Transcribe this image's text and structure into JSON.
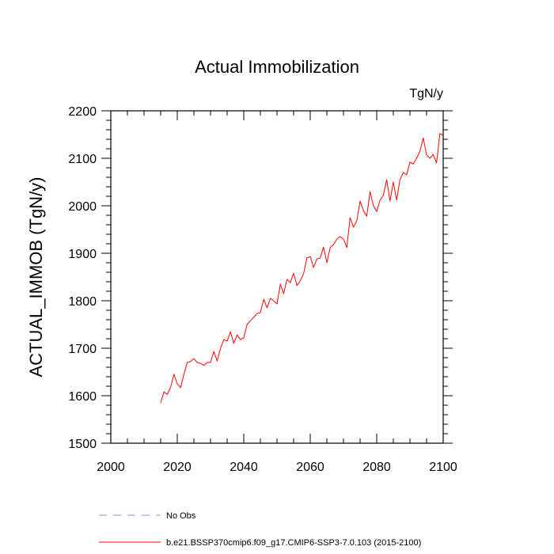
{
  "chart_data": {
    "type": "line",
    "title": "Actual Immobilization",
    "units": "TgN/y",
    "xlabel": "",
    "ylabel": "ACTUAL_IMMOB  (TgN/y)",
    "xlim": [
      2000,
      2100
    ],
    "ylim": [
      1500,
      2200
    ],
    "x_ticks": [
      2000,
      2020,
      2040,
      2060,
      2080,
      2100
    ],
    "y_ticks": [
      1500,
      1600,
      1700,
      1800,
      1900,
      2000,
      2100,
      2200
    ],
    "x_minor_step": 5,
    "y_minor_step": 20,
    "series": [
      {
        "name": "b.e21.BSSP370cmip6.f09_g17.CMIP6-SSP3-7.0.103 (2015-2100)",
        "color": "#ff0000",
        "style": "solid",
        "x": [
          2015,
          2016,
          2017,
          2018,
          2019,
          2020,
          2021,
          2022,
          2023,
          2024,
          2025,
          2026,
          2027,
          2028,
          2029,
          2030,
          2031,
          2032,
          2033,
          2034,
          2035,
          2036,
          2037,
          2038,
          2039,
          2040,
          2041,
          2042,
          2043,
          2044,
          2045,
          2046,
          2047,
          2048,
          2049,
          2050,
          2051,
          2052,
          2053,
          2054,
          2055,
          2056,
          2057,
          2058,
          2059,
          2060,
          2061,
          2062,
          2063,
          2064,
          2065,
          2066,
          2067,
          2068,
          2069,
          2070,
          2071,
          2072,
          2073,
          2074,
          2075,
          2076,
          2077,
          2078,
          2079,
          2080,
          2081,
          2082,
          2083,
          2084,
          2085,
          2086,
          2087,
          2088,
          2089,
          2090,
          2091,
          2092,
          2093,
          2094,
          2095,
          2096,
          2097,
          2098,
          2099,
          2100
        ],
        "values": [
          1585,
          1608,
          1603,
          1618,
          1645,
          1625,
          1617,
          1645,
          1670,
          1672,
          1678,
          1670,
          1668,
          1664,
          1670,
          1670,
          1693,
          1673,
          1700,
          1718,
          1715,
          1735,
          1710,
          1728,
          1718,
          1722,
          1750,
          1758,
          1765,
          1773,
          1775,
          1803,
          1785,
          1805,
          1800,
          1793,
          1835,
          1815,
          1845,
          1838,
          1858,
          1832,
          1842,
          1857,
          1890,
          1893,
          1870,
          1888,
          1890,
          1913,
          1880,
          1912,
          1918,
          1930,
          1935,
          1930,
          1912,
          1975,
          1955,
          1968,
          2010,
          1990,
          1978,
          2030,
          2000,
          1988,
          2012,
          2022,
          2055,
          2010,
          2050,
          2012,
          2055,
          2070,
          2065,
          2092,
          2088,
          2100,
          2115,
          2143,
          2107,
          2100,
          2108,
          2090,
          2152,
          2148
        ]
      },
      {
        "name": "No Obs",
        "color": "#8888ee",
        "style": "dashed",
        "x": [],
        "values": []
      }
    ],
    "legend_position": "bottom-left"
  }
}
